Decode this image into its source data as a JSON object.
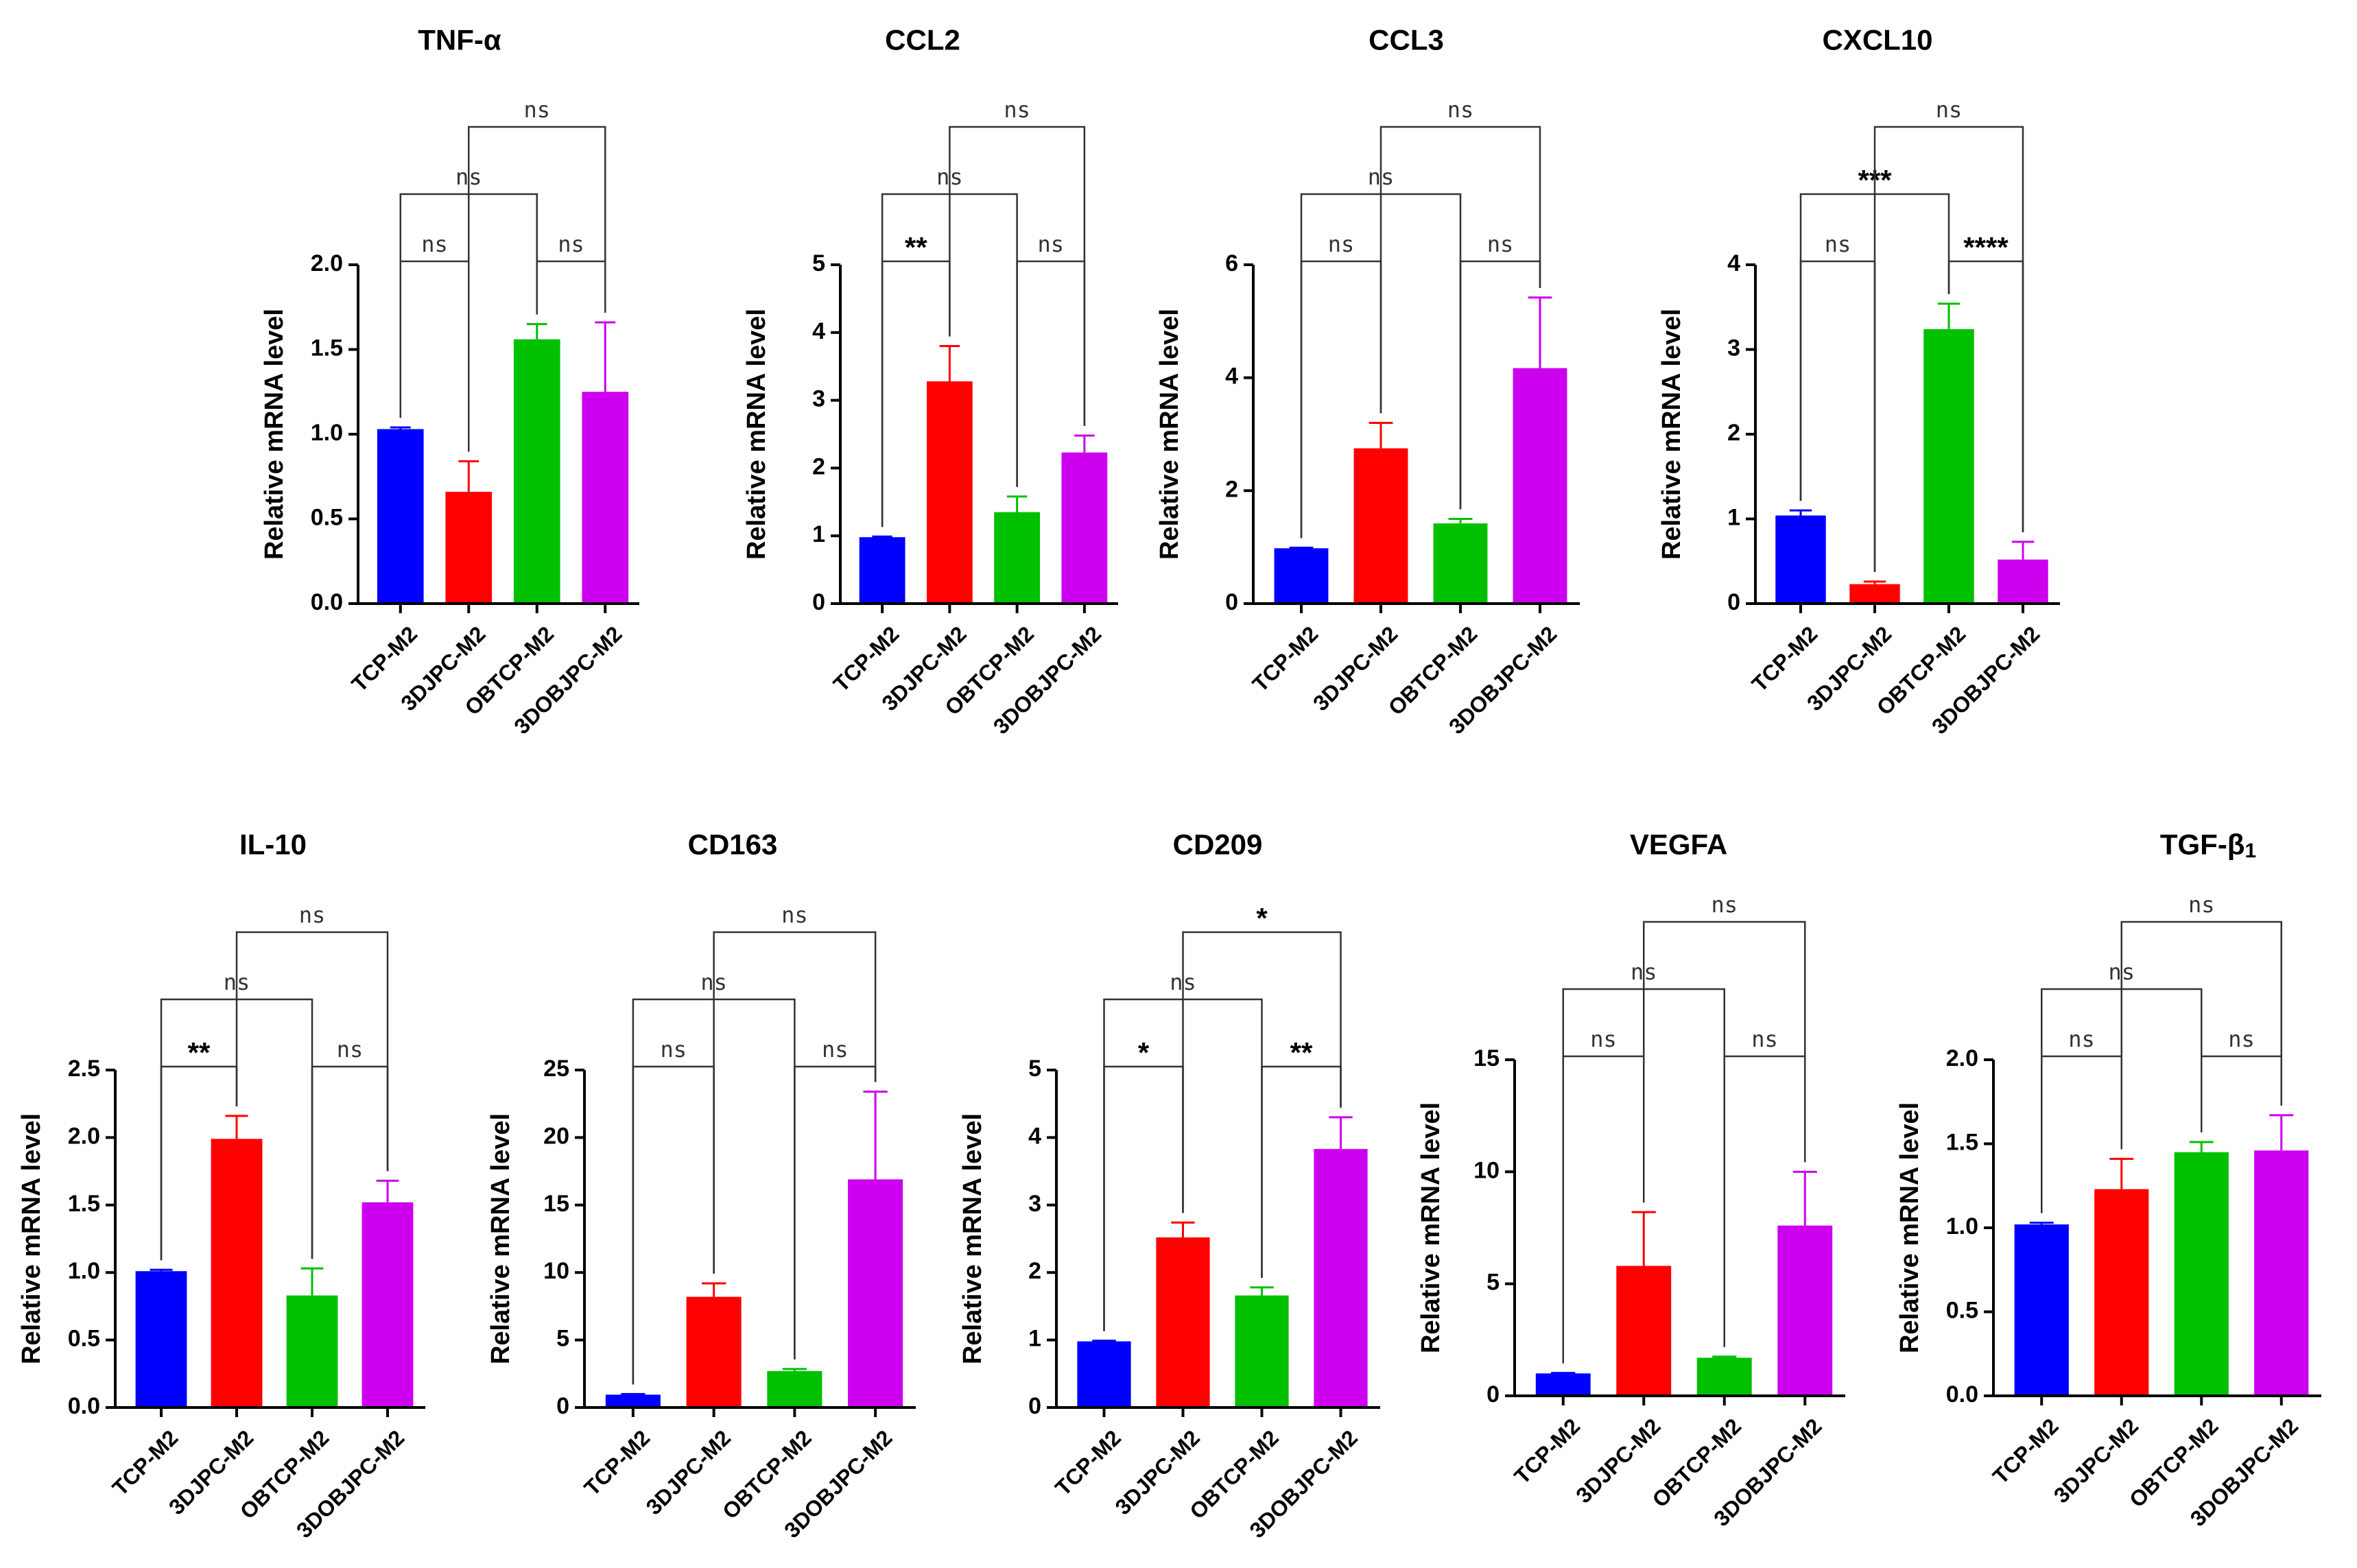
{
  "figure": {
    "colors": {
      "TCP-M2": "#0000ff",
      "3DJPC-M2": "#ff0000",
      "OBTCP-M2": "#00c000",
      "3DOBJPC-M2": "#cc00ee"
    },
    "icons": {
      "error_bar": "error-bar-cap"
    }
  },
  "chart_data": [
    {
      "type": "bar",
      "title": "TNF-α",
      "ylabel": "Relative mRNA level",
      "categories": [
        "TCP-M2",
        "3DJPC-M2",
        "OBTCP-M2",
        "3DOBJPC-M2"
      ],
      "values": [
        1.03,
        0.66,
        1.56,
        1.25
      ],
      "errors": [
        0.01,
        0.18,
        0.09,
        0.41
      ],
      "ylim": [
        0,
        2.0
      ],
      "yticks": [
        "0.0",
        "0.5",
        "1.0",
        "1.5",
        "2.0"
      ],
      "tick_values": [
        0,
        0.5,
        1.0,
        1.5,
        2.0
      ],
      "comparisons": [
        {
          "from": 0,
          "to": 1,
          "label": "ns",
          "level": 0
        },
        {
          "from": 2,
          "to": 3,
          "label": "ns",
          "level": 0
        },
        {
          "from": 0,
          "to": 2,
          "label": "ns",
          "level": 1
        },
        {
          "from": 1,
          "to": 3,
          "label": "ns",
          "level": 2
        }
      ]
    },
    {
      "type": "bar",
      "title": "CCL2",
      "ylabel": "Relative mRNA level",
      "categories": [
        "TCP-M2",
        "3DJPC-M2",
        "OBTCP-M2",
        "3DOBJPC-M2"
      ],
      "values": [
        0.98,
        3.28,
        1.35,
        2.23
      ],
      "errors": [
        0.01,
        0.52,
        0.23,
        0.25
      ],
      "ylim": [
        0,
        5
      ],
      "yticks": [
        "0",
        "1",
        "2",
        "3",
        "4",
        "5"
      ],
      "tick_values": [
        0,
        1,
        2,
        3,
        4,
        5
      ],
      "comparisons": [
        {
          "from": 0,
          "to": 1,
          "label": "**",
          "level": 0
        },
        {
          "from": 2,
          "to": 3,
          "label": "ns",
          "level": 0
        },
        {
          "from": 0,
          "to": 2,
          "label": "ns",
          "level": 1
        },
        {
          "from": 1,
          "to": 3,
          "label": "ns",
          "level": 2
        }
      ]
    },
    {
      "type": "bar",
      "title": "CCL3",
      "ylabel": "Relative mRNA level",
      "categories": [
        "TCP-M2",
        "3DJPC-M2",
        "OBTCP-M2",
        "3DOBJPC-M2"
      ],
      "values": [
        0.98,
        2.75,
        1.42,
        4.17
      ],
      "errors": [
        0.01,
        0.45,
        0.08,
        1.25
      ],
      "ylim": [
        0,
        6
      ],
      "yticks": [
        "0",
        "2",
        "4",
        "6"
      ],
      "tick_values": [
        0,
        2,
        4,
        6
      ],
      "comparisons": [
        {
          "from": 0,
          "to": 1,
          "label": "ns",
          "level": 0
        },
        {
          "from": 2,
          "to": 3,
          "label": "ns",
          "level": 0
        },
        {
          "from": 0,
          "to": 2,
          "label": "ns",
          "level": 1
        },
        {
          "from": 1,
          "to": 3,
          "label": "ns",
          "level": 2
        }
      ]
    },
    {
      "type": "bar",
      "title": "CXCL10",
      "ylabel": "Relative mRNA level",
      "categories": [
        "TCP-M2",
        "3DJPC-M2",
        "OBTCP-M2",
        "3DOBJPC-M2"
      ],
      "values": [
        1.04,
        0.23,
        3.24,
        0.52
      ],
      "errors": [
        0.06,
        0.03,
        0.3,
        0.21
      ],
      "ylim": [
        0,
        4
      ],
      "yticks": [
        "0",
        "1",
        "2",
        "3",
        "4"
      ],
      "tick_values": [
        0,
        1,
        2,
        3,
        4
      ],
      "comparisons": [
        {
          "from": 0,
          "to": 1,
          "label": "ns",
          "level": 0
        },
        {
          "from": 2,
          "to": 3,
          "label": "****",
          "level": 0
        },
        {
          "from": 0,
          "to": 2,
          "label": "***",
          "level": 1
        },
        {
          "from": 1,
          "to": 3,
          "label": "ns",
          "level": 2
        }
      ]
    },
    {
      "type": "bar",
      "title": "IL-10",
      "ylabel": "Relative mRNA level",
      "categories": [
        "TCP-M2",
        "3DJPC-M2",
        "OBTCP-M2",
        "3DOBJPC-M2"
      ],
      "values": [
        1.01,
        1.99,
        0.83,
        1.52
      ],
      "errors": [
        0.01,
        0.17,
        0.2,
        0.16
      ],
      "ylim": [
        0,
        2.5
      ],
      "yticks": [
        "0.0",
        "0.5",
        "1.0",
        "1.5",
        "2.0",
        "2.5"
      ],
      "tick_values": [
        0,
        0.5,
        1.0,
        1.5,
        2.0,
        2.5
      ],
      "comparisons": [
        {
          "from": 0,
          "to": 1,
          "label": "**",
          "level": 0
        },
        {
          "from": 2,
          "to": 3,
          "label": "ns",
          "level": 0
        },
        {
          "from": 0,
          "to": 2,
          "label": "ns",
          "level": 1
        },
        {
          "from": 1,
          "to": 3,
          "label": "ns",
          "level": 2
        }
      ]
    },
    {
      "type": "bar",
      "title": "CD163",
      "ylabel": "Relative mRNA level",
      "categories": [
        "TCP-M2",
        "3DJPC-M2",
        "OBTCP-M2",
        "3DOBJPC-M2"
      ],
      "values": [
        0.95,
        8.2,
        2.7,
        16.9
      ],
      "errors": [
        0.05,
        1.0,
        0.15,
        6.5
      ],
      "ylim": [
        0,
        25
      ],
      "yticks": [
        "0",
        "5",
        "10",
        "15",
        "20",
        "25"
      ],
      "tick_values": [
        0,
        5,
        10,
        15,
        20,
        25
      ],
      "comparisons": [
        {
          "from": 0,
          "to": 1,
          "label": "ns",
          "level": 0
        },
        {
          "from": 2,
          "to": 3,
          "label": "ns",
          "level": 0
        },
        {
          "from": 0,
          "to": 2,
          "label": "ns",
          "level": 1
        },
        {
          "from": 1,
          "to": 3,
          "label": "ns",
          "level": 2
        }
      ]
    },
    {
      "type": "bar",
      "title": "CD209",
      "ylabel": "Relative mRNA level",
      "categories": [
        "TCP-M2",
        "3DJPC-M2",
        "OBTCP-M2",
        "3DOBJPC-M2"
      ],
      "values": [
        0.98,
        2.52,
        1.66,
        3.83
      ],
      "errors": [
        0.01,
        0.22,
        0.12,
        0.47
      ],
      "ylim": [
        0,
        5
      ],
      "yticks": [
        "0",
        "1",
        "2",
        "3",
        "4",
        "5"
      ],
      "tick_values": [
        0,
        1,
        2,
        3,
        4,
        5
      ],
      "comparisons": [
        {
          "from": 0,
          "to": 1,
          "label": "*",
          "level": 0
        },
        {
          "from": 2,
          "to": 3,
          "label": "**",
          "level": 0
        },
        {
          "from": 0,
          "to": 2,
          "label": "ns",
          "level": 1
        },
        {
          "from": 1,
          "to": 3,
          "label": "*",
          "level": 2
        }
      ]
    },
    {
      "type": "bar",
      "title": "VEGFA",
      "ylabel": "Relative mRNA level",
      "categories": [
        "TCP-M2",
        "3DJPC-M2",
        "OBTCP-M2",
        "3DOBJPC-M2"
      ],
      "values": [
        1.0,
        5.8,
        1.7,
        7.6
      ],
      "errors": [
        0.02,
        2.4,
        0.05,
        2.4
      ],
      "ylim": [
        0,
        15
      ],
      "yticks": [
        "0",
        "5",
        "10",
        "15"
      ],
      "tick_values": [
        0,
        5,
        10,
        15
      ],
      "comparisons": [
        {
          "from": 0,
          "to": 1,
          "label": "ns",
          "level": 0
        },
        {
          "from": 2,
          "to": 3,
          "label": "ns",
          "level": 0
        },
        {
          "from": 0,
          "to": 2,
          "label": "ns",
          "level": 1
        },
        {
          "from": 1,
          "to": 3,
          "label": "ns",
          "level": 2
        }
      ]
    },
    {
      "type": "bar",
      "title": "TGF-β1",
      "title_main": "TGF-β",
      "title_sub": "1",
      "ylabel": "Relative mRNA level",
      "categories": [
        "TCP-M2",
        "3DJPC-M2",
        "OBTCP-M2",
        "3DOBJPC-M2"
      ],
      "values": [
        1.02,
        1.23,
        1.45,
        1.46
      ],
      "errors": [
        0.01,
        0.18,
        0.06,
        0.21
      ],
      "ylim": [
        0,
        2.0
      ],
      "yticks": [
        "0.0",
        "0.5",
        "1.0",
        "1.5",
        "2.0"
      ],
      "tick_values": [
        0,
        0.5,
        1.0,
        1.5,
        2.0
      ],
      "comparisons": [
        {
          "from": 0,
          "to": 1,
          "label": "ns",
          "level": 0
        },
        {
          "from": 2,
          "to": 3,
          "label": "ns",
          "level": 0
        },
        {
          "from": 0,
          "to": 2,
          "label": "ns",
          "level": 1
        },
        {
          "from": 1,
          "to": 3,
          "label": "ns",
          "level": 2
        }
      ]
    }
  ]
}
